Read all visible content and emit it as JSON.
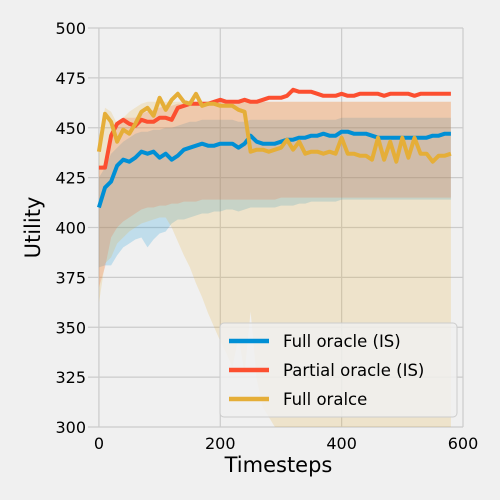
{
  "chart_data": {
    "type": "line",
    "xlabel": "Timesteps",
    "ylabel": "Utility",
    "xlim": [
      -18,
      600
    ],
    "ylim": [
      300,
      500
    ],
    "xticks": [
      0,
      200,
      400,
      600
    ],
    "yticks": [
      300,
      325,
      350,
      375,
      400,
      425,
      450,
      475,
      500
    ],
    "grid": true,
    "legend_position": "lower-right",
    "series": [
      {
        "name": "Full oracle (IS)",
        "color": "#008fd5",
        "x": [
          0,
          10,
          20,
          30,
          40,
          50,
          60,
          70,
          80,
          90,
          100,
          110,
          120,
          130,
          140,
          150,
          160,
          170,
          180,
          190,
          200,
          210,
          220,
          230,
          240,
          250,
          260,
          270,
          280,
          290,
          300,
          310,
          320,
          330,
          340,
          350,
          360,
          370,
          380,
          390,
          400,
          410,
          420,
          430,
          440,
          450,
          460,
          470,
          480,
          490,
          500,
          510,
          520,
          530,
          540,
          550,
          560,
          570,
          580
        ],
        "y": [
          410,
          420,
          423,
          431,
          434,
          433,
          435,
          438,
          437,
          438,
          435,
          437,
          434,
          436,
          439,
          440,
          441,
          442,
          441,
          441,
          442,
          442,
          442,
          440,
          442,
          446,
          443,
          442,
          442,
          442,
          443,
          444,
          444,
          445,
          445,
          446,
          446,
          447,
          446,
          446,
          448,
          448,
          447,
          447,
          447,
          446,
          445,
          445,
          445,
          445,
          445,
          445,
          445,
          445,
          445,
          446,
          446,
          447,
          447
        ],
        "band_upper": [
          425,
          430,
          437,
          440,
          443,
          445,
          447,
          448,
          448,
          449,
          449,
          450,
          450,
          451,
          452,
          453,
          453,
          454,
          454,
          454,
          454,
          454,
          454,
          453,
          453,
          454,
          454,
          454,
          454,
          454,
          454,
          454,
          454,
          454,
          454,
          454,
          454,
          454,
          454,
          454,
          455,
          455,
          455,
          455,
          455,
          455,
          455,
          455,
          455,
          455,
          455,
          455,
          455,
          455,
          455,
          455,
          455,
          455,
          455
        ],
        "band_lower": [
          380,
          381,
          381,
          386,
          390,
          392,
          394,
          395,
          390,
          394,
          397,
          398,
          402,
          404,
          404,
          405,
          406,
          407,
          407,
          408,
          408,
          409,
          409,
          408,
          409,
          410,
          410,
          410,
          410,
          410,
          411,
          411,
          411,
          412,
          412,
          413,
          413,
          413,
          413,
          413,
          414,
          414,
          414,
          414,
          414,
          414,
          414,
          414,
          414,
          414,
          414,
          414,
          414,
          414,
          414,
          414,
          414,
          414,
          414
        ]
      },
      {
        "name": "Partial oracle (IS)",
        "color": "#fc4f30",
        "x": [
          0,
          10,
          20,
          30,
          40,
          50,
          60,
          70,
          80,
          90,
          100,
          110,
          120,
          130,
          140,
          150,
          160,
          170,
          180,
          190,
          200,
          210,
          220,
          230,
          240,
          250,
          260,
          270,
          280,
          290,
          300,
          310,
          320,
          330,
          340,
          350,
          360,
          370,
          380,
          390,
          400,
          410,
          420,
          430,
          440,
          450,
          460,
          470,
          480,
          490,
          500,
          510,
          520,
          530,
          540,
          550,
          560,
          570,
          580
        ],
        "y": [
          430,
          430,
          446,
          452,
          454,
          452,
          451,
          454,
          453,
          453,
          455,
          455,
          454,
          460,
          461,
          462,
          462,
          462,
          462,
          463,
          464,
          463,
          463,
          463,
          464,
          463,
          463,
          464,
          465,
          465,
          465,
          466,
          469,
          468,
          468,
          468,
          467,
          466,
          466,
          466,
          467,
          466,
          466,
          467,
          467,
          467,
          467,
          466,
          467,
          467,
          467,
          467,
          466,
          467,
          467,
          467,
          467,
          467,
          467
        ],
        "band_upper": [
          430,
          432,
          448,
          453,
          455,
          455,
          455,
          457,
          458,
          459,
          460,
          461,
          461,
          462,
          462,
          463,
          463,
          463,
          463,
          463,
          463,
          463,
          463,
          463,
          463,
          463,
          463,
          463,
          463,
          463,
          463,
          463,
          463,
          463,
          463,
          463,
          463,
          463,
          463,
          463,
          463,
          463,
          463,
          463,
          463,
          463,
          463,
          463,
          463,
          463,
          463,
          463,
          463,
          463,
          463,
          463,
          463,
          463,
          463
        ],
        "band_lower": [
          370,
          380,
          395,
          400,
          403,
          405,
          407,
          409,
          410,
          410,
          411,
          411,
          412,
          412,
          413,
          413,
          413,
          414,
          414,
          414,
          414,
          414,
          414,
          414,
          414,
          414,
          414,
          414,
          414,
          414,
          415,
          415,
          415,
          415,
          415,
          415,
          415,
          415,
          415,
          415,
          415,
          415,
          415,
          415,
          415,
          415,
          415,
          415,
          415,
          415,
          415,
          415,
          415,
          415,
          415,
          415,
          415,
          415,
          415
        ]
      },
      {
        "name": "Full oralce",
        "color": "#e5ae38",
        "x": [
          0,
          10,
          20,
          30,
          40,
          50,
          60,
          70,
          80,
          90,
          100,
          110,
          120,
          130,
          140,
          150,
          160,
          170,
          180,
          190,
          200,
          210,
          220,
          230,
          240,
          250,
          260,
          270,
          280,
          290,
          300,
          310,
          320,
          330,
          340,
          350,
          360,
          370,
          380,
          390,
          400,
          410,
          420,
          430,
          440,
          450,
          460,
          470,
          480,
          490,
          500,
          510,
          520,
          530,
          540,
          550,
          560,
          570,
          580
        ],
        "y": [
          438,
          457,
          453,
          443,
          449,
          447,
          452,
          458,
          460,
          456,
          465,
          459,
          464,
          467,
          463,
          462,
          467,
          461,
          462,
          462,
          461,
          461,
          461,
          459,
          458,
          438,
          439,
          439,
          438,
          439,
          440,
          444,
          439,
          443,
          437,
          438,
          438,
          437,
          438,
          437,
          445,
          437,
          437,
          436,
          436,
          434,
          445,
          434,
          443,
          433,
          445,
          435,
          445,
          437,
          437,
          433,
          436,
          436,
          437
        ],
        "band_upper": [
          440,
          460,
          458,
          452,
          455,
          458,
          460,
          462,
          463,
          463,
          463,
          463,
          463,
          463,
          463,
          463,
          463,
          463,
          463,
          463,
          463,
          463,
          463,
          463,
          463,
          463,
          463,
          463,
          463,
          463,
          463,
          463,
          463,
          463,
          463,
          463,
          463,
          463,
          463,
          463,
          463,
          463,
          463,
          463,
          463,
          463,
          463,
          463,
          463,
          463,
          463,
          463,
          463,
          463,
          463,
          463,
          463,
          463,
          463
        ],
        "band_lower": [
          362,
          382,
          385,
          392,
          395,
          398,
          400,
          402,
          403,
          404,
          405,
          405,
          400,
          393,
          386,
          380,
          372,
          365,
          357,
          350,
          343,
          337,
          330,
          345,
          327,
          358,
          324,
          310,
          305,
          300,
          300,
          300,
          300,
          300,
          300,
          300,
          300,
          300,
          300,
          300,
          300,
          300,
          300,
          300,
          300,
          300,
          300,
          300,
          300,
          300,
          300,
          300,
          300,
          300,
          300,
          300,
          300,
          300,
          300
        ]
      }
    ]
  }
}
